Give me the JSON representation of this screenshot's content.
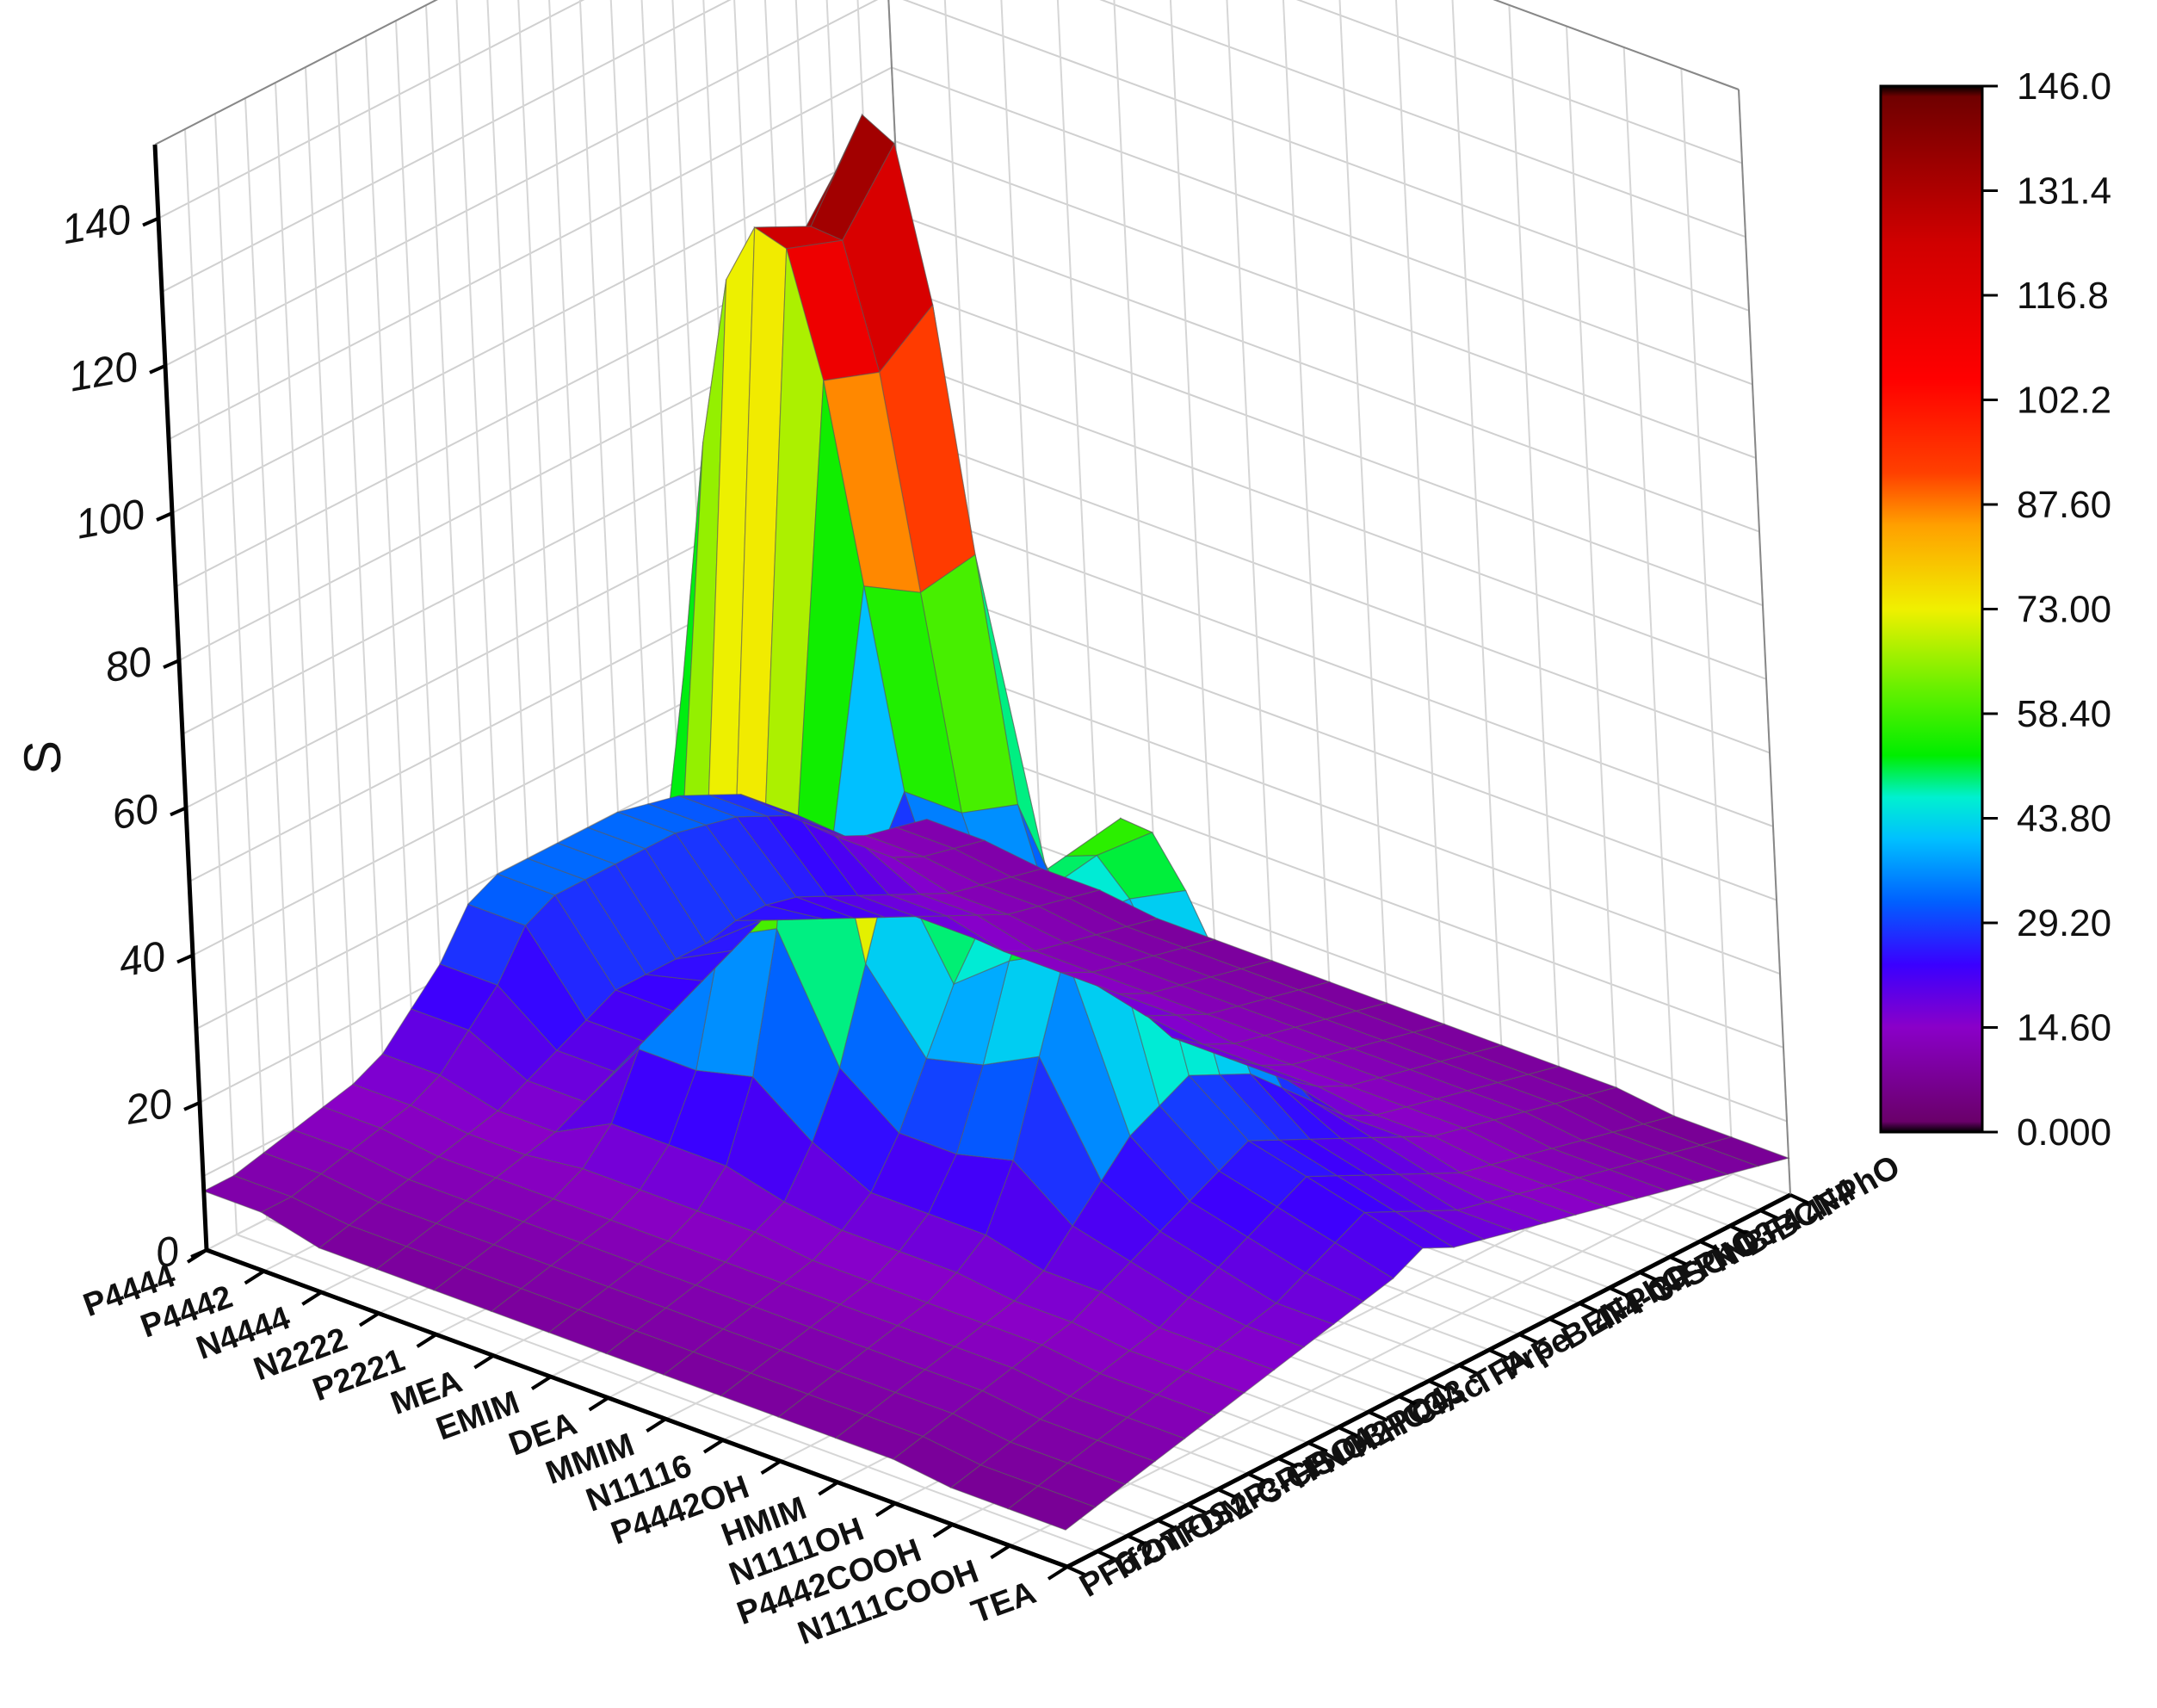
{
  "chart_data": {
    "type": "surface-3d",
    "zlabel": "S",
    "zlim": [
      0,
      150
    ],
    "zticks": [
      0,
      20,
      40,
      60,
      80,
      100,
      120,
      140
    ],
    "cations": [
      "P4444",
      "P4442",
      "N4444",
      "N2222",
      "P2221",
      "MEA",
      "EMIM",
      "DEA",
      "MMIM",
      "N11116",
      "P4442OH",
      "HMIM",
      "N1111OH",
      "P4442COOH",
      "N1111COOH",
      "TEA"
    ],
    "anions": [
      "PF6",
      "Tf2n",
      "OTF",
      "TOS",
      "DMP",
      "2-CP",
      "3-CP",
      "HSO4",
      "NO3",
      "H2PO4",
      "HCO3",
      "Cl",
      "Ac",
      "TFA",
      "Prp",
      "Fe",
      "BEN",
      "4FPhO",
      "4-CP",
      "3-FPhO",
      "SCN",
      "NO3-b",
      "BF4",
      "BCN4",
      "4FPhO-b"
    ],
    "anion_labels_visible": [
      "PF6",
      "Tf2n",
      "OTF",
      "TOS",
      "DMP",
      "2-CP",
      "3-CP",
      "HSO4",
      "NO3",
      "H2PO4",
      "HCO3",
      "Cl",
      "Ac",
      "TFA",
      "Prp",
      "Fe",
      "BEN",
      "4FPhO",
      "4-CP",
      "3-FPhO",
      "SCN",
      "NO3",
      "BF4",
      "BCN4",
      "4FPhO"
    ],
    "colorbar": {
      "min": 0.0,
      "max": 146.0,
      "labels": [
        "146.0",
        "131.4",
        "116.8",
        "102.2",
        "87.60",
        "73.00",
        "58.40",
        "43.80",
        "29.20",
        "14.60",
        "0.000"
      ],
      "colors": [
        "#6a006a",
        "#8a00c8",
        "#3a00ff",
        "#0060ff",
        "#00c0ff",
        "#00f0d0",
        "#00ee00",
        "#60f000",
        "#f0f000",
        "#ffa000",
        "#ff4000",
        "#ff0000",
        "#d00000",
        "#700000"
      ]
    },
    "series": [
      {
        "cation": "P4444",
        "values": [
          8,
          8,
          9,
          10,
          11,
          12,
          14,
          18,
          22,
          28,
          30,
          30,
          30,
          30,
          30,
          29,
          28,
          26,
          24,
          20,
          16,
          12,
          10,
          9,
          8
        ]
      },
      {
        "cation": "P4442",
        "values": [
          8,
          8,
          9,
          10,
          11,
          12,
          14,
          18,
          22,
          28,
          30,
          30,
          30,
          30,
          30,
          29,
          28,
          26,
          24,
          20,
          16,
          12,
          10,
          9,
          8
        ]
      },
      {
        "cation": "N4444",
        "values": [
          6,
          7,
          8,
          9,
          10,
          11,
          12,
          14,
          16,
          18,
          20,
          20,
          20,
          20,
          21,
          21,
          20,
          18,
          16,
          14,
          12,
          10,
          9,
          8,
          7
        ]
      },
      {
        "cation": "N2222",
        "values": [
          6,
          7,
          8,
          9,
          10,
          11,
          12,
          14,
          16,
          18,
          20,
          22,
          24,
          26,
          24,
          22,
          20,
          18,
          16,
          14,
          12,
          10,
          9,
          8,
          7
        ]
      },
      {
        "cation": "P2221",
        "values": [
          6,
          7,
          8,
          9,
          10,
          12,
          16,
          24,
          40,
          70,
          100,
          120,
          125,
          120,
          100,
          70,
          40,
          24,
          16,
          12,
          10,
          9,
          8,
          7,
          6
        ]
      },
      {
        "cation": "MEA",
        "values": [
          6,
          7,
          8,
          9,
          10,
          12,
          16,
          24,
          40,
          72,
          104,
          124,
          128,
          124,
          104,
          72,
          40,
          24,
          16,
          12,
          10,
          9,
          8,
          7,
          6
        ]
      },
      {
        "cation": "EMIM",
        "values": [
          6,
          7,
          8,
          9,
          10,
          12,
          16,
          26,
          44,
          80,
          116,
          140,
          146,
          140,
          116,
          80,
          44,
          26,
          16,
          12,
          10,
          9,
          8,
          7,
          6
        ]
      },
      {
        "cation": "DEA",
        "values": [
          6,
          7,
          8,
          9,
          10,
          12,
          14,
          20,
          28,
          40,
          52,
          60,
          64,
          60,
          52,
          40,
          28,
          20,
          14,
          12,
          10,
          9,
          8,
          7,
          6
        ]
      },
      {
        "cation": "MMIM",
        "values": [
          6,
          7,
          8,
          9,
          10,
          11,
          13,
          16,
          22,
          30,
          38,
          44,
          46,
          44,
          38,
          30,
          22,
          16,
          13,
          11,
          10,
          9,
          8,
          7,
          6
        ]
      },
      {
        "cation": "N11116",
        "values": [
          6,
          7,
          8,
          9,
          10,
          11,
          13,
          16,
          22,
          32,
          44,
          52,
          54,
          52,
          44,
          32,
          22,
          16,
          13,
          11,
          10,
          9,
          8,
          7,
          6
        ]
      },
      {
        "cation": "P4442OH",
        "values": [
          6,
          7,
          8,
          9,
          10,
          11,
          13,
          16,
          24,
          36,
          48,
          58,
          62,
          58,
          48,
          36,
          24,
          16,
          13,
          11,
          10,
          9,
          8,
          7,
          6
        ]
      },
      {
        "cation": "HMIM",
        "values": [
          6,
          7,
          8,
          9,
          10,
          11,
          12,
          14,
          18,
          22,
          26,
          28,
          30,
          28,
          26,
          22,
          18,
          14,
          12,
          11,
          10,
          9,
          8,
          7,
          6
        ]
      },
      {
        "cation": "N1111OH",
        "values": [
          6,
          7,
          8,
          9,
          10,
          11,
          12,
          14,
          16,
          18,
          20,
          22,
          24,
          22,
          20,
          18,
          16,
          14,
          12,
          11,
          10,
          9,
          8,
          7,
          6
        ]
      },
      {
        "cation": "P4442COOH",
        "values": [
          5,
          6,
          7,
          8,
          9,
          10,
          11,
          12,
          14,
          16,
          18,
          20,
          22,
          20,
          18,
          16,
          14,
          12,
          11,
          10,
          9,
          8,
          7,
          6,
          5
        ]
      },
      {
        "cation": "N1111COOH",
        "values": [
          5,
          6,
          7,
          8,
          9,
          10,
          11,
          12,
          13,
          14,
          16,
          18,
          20,
          18,
          16,
          14,
          13,
          12,
          11,
          10,
          9,
          8,
          7,
          6,
          5
        ]
      },
      {
        "cation": "TEA",
        "values": [
          5,
          6,
          7,
          8,
          9,
          10,
          11,
          12,
          13,
          14,
          15,
          16,
          18,
          16,
          15,
          14,
          13,
          12,
          11,
          10,
          9,
          8,
          7,
          6,
          5
        ]
      }
    ]
  }
}
